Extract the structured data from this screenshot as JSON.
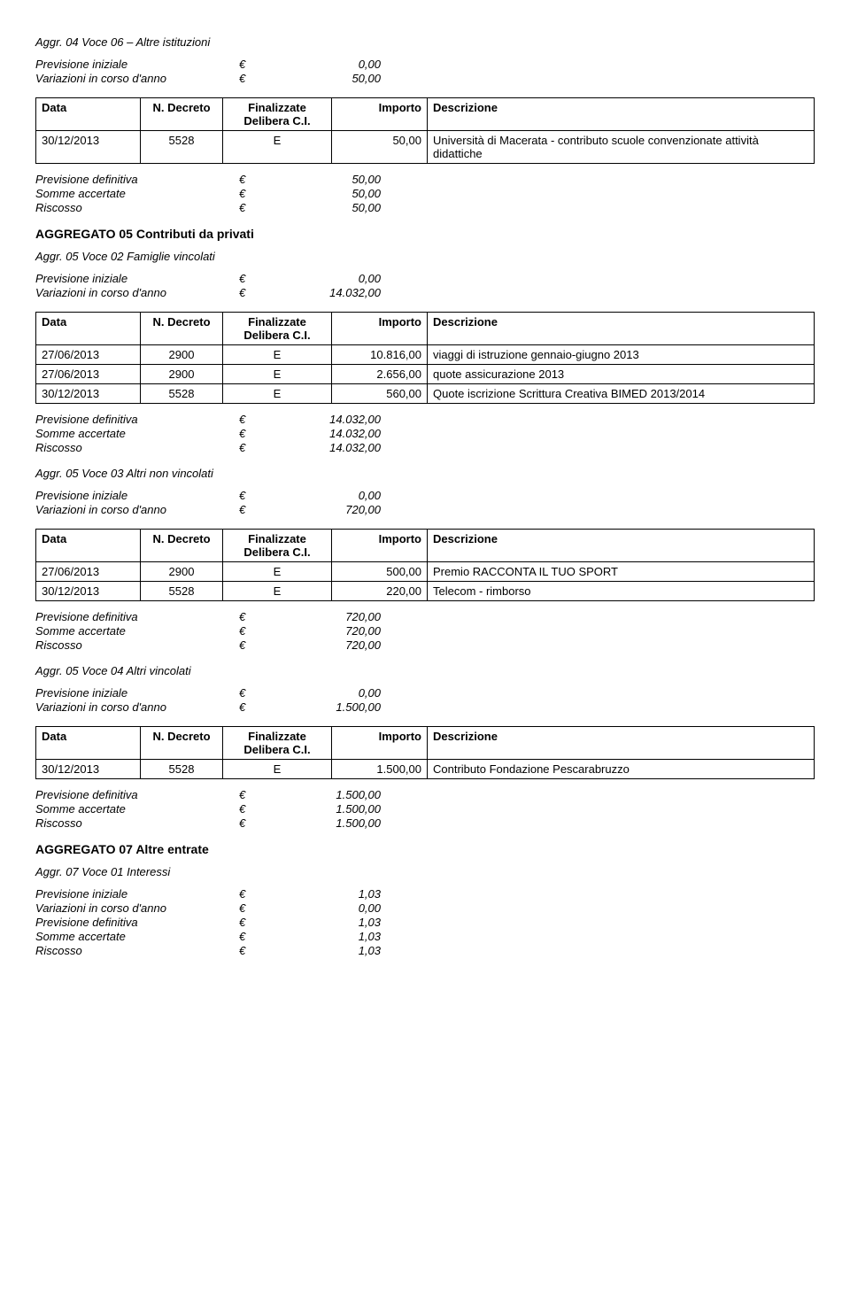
{
  "euro": "€",
  "headers": {
    "data": "Data",
    "decreto": "N. Decreto",
    "finalizzate": "Finalizzate Delibera C.I.",
    "importo": "Importo",
    "descrizione": "Descrizione"
  },
  "labels": {
    "prev_iniziale": "Previsione iniziale",
    "variazioni": "Variazioni in corso d'anno",
    "prev_definitiva": "Previsione definitiva",
    "somme_accertate": "Somme accertate",
    "riscosso": "Riscosso"
  },
  "s1": {
    "title": "Aggr. 04 Voce 06 – Altre istituzioni",
    "prev_iniziale": "0,00",
    "variazioni": "50,00",
    "rows": [
      {
        "data": "30/12/2013",
        "decreto": "5528",
        "fin": "E",
        "importo": "50,00",
        "desc": "Università di Macerata - contributo scuole convenzionate attività didattiche"
      }
    ],
    "prev_definitiva": "50,00",
    "somme_accertate": "50,00",
    "riscosso": "50,00"
  },
  "agg05_title": "AGGREGATO 05 Contributi da privati",
  "s2": {
    "title": "Aggr. 05 Voce 02 Famiglie vincolati",
    "prev_iniziale": "0,00",
    "variazioni": "14.032,00",
    "rows": [
      {
        "data": "27/06/2013",
        "decreto": "2900",
        "fin": "E",
        "importo": "10.816,00",
        "desc": "viaggi di istruzione gennaio-giugno 2013"
      },
      {
        "data": "27/06/2013",
        "decreto": "2900",
        "fin": "E",
        "importo": "2.656,00",
        "desc": "quote assicurazione 2013"
      },
      {
        "data": "30/12/2013",
        "decreto": "5528",
        "fin": "E",
        "importo": "560,00",
        "desc": "Quote iscrizione Scrittura Creativa BIMED 2013/2014"
      }
    ],
    "prev_definitiva": "14.032,00",
    "somme_accertate": "14.032,00",
    "riscosso": "14.032,00"
  },
  "s3": {
    "title": "Aggr. 05 Voce 03 Altri non vincolati",
    "prev_iniziale": "0,00",
    "variazioni": "720,00",
    "rows": [
      {
        "data": "27/06/2013",
        "decreto": "2900",
        "fin": "E",
        "importo": "500,00",
        "desc": "Premio RACCONTA IL TUO SPORT"
      },
      {
        "data": "30/12/2013",
        "decreto": "5528",
        "fin": "E",
        "importo": "220,00",
        "desc": "Telecom - rimborso"
      }
    ],
    "prev_definitiva": "720,00",
    "somme_accertate": "720,00",
    "riscosso": "720,00"
  },
  "s4": {
    "title": "Aggr. 05 Voce 04 Altri vincolati",
    "prev_iniziale": "0,00",
    "variazioni": "1.500,00",
    "rows": [
      {
        "data": "30/12/2013",
        "decreto": "5528",
        "fin": "E",
        "importo": "1.500,00",
        "desc": "Contributo Fondazione Pescarabruzzo"
      }
    ],
    "prev_definitiva": "1.500,00",
    "somme_accertate": "1.500,00",
    "riscosso": "1.500,00"
  },
  "agg07_title": "AGGREGATO 07 Altre entrate",
  "s5": {
    "title": "Aggr. 07 Voce 01 Interessi",
    "prev_iniziale": "1,03",
    "variazioni": "0,00",
    "prev_definitiva": "1,03",
    "somme_accertate": "1,03",
    "riscosso": "1,03"
  }
}
